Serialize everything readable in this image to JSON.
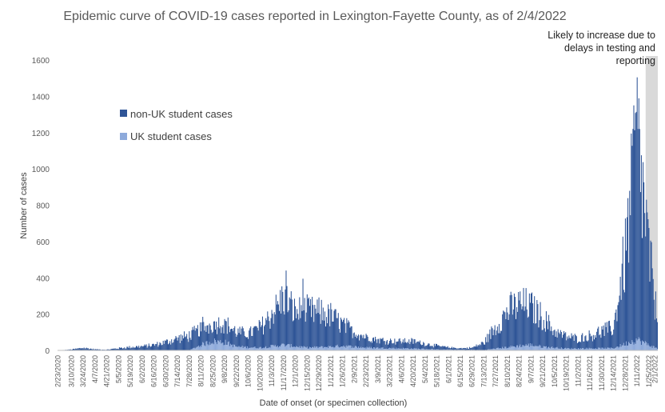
{
  "chart_data": {
    "type": "bar",
    "stacked": true,
    "title": "Epidemic curve of COVID-19 cases reported in Lexington-Fayette County, as of 2/4/2022",
    "xlabel": "Date of onset (or specimen collection)",
    "ylabel": "Number of cases",
    "ylim": [
      0,
      1600
    ],
    "yticks": [
      "0",
      "200",
      "400",
      "600",
      "800",
      "1000",
      "1200",
      "1400",
      "1600"
    ],
    "grid": false,
    "legend": {
      "position": "upper-left inside plot",
      "entries": [
        "non-UK student cases",
        "UK student cases"
      ]
    },
    "colors": {
      "non_uk": "#2f5597",
      "uk": "#8eaadb",
      "shade": "#d9d9d9"
    },
    "annotation": {
      "lines": [
        "Likely to increase due to",
        "delays in testing and",
        "reporting"
      ],
      "shaded_from": "1/22/2022",
      "shaded_to": "2/4/2022"
    },
    "x_start": "2/23/2020",
    "x_end": "2/4/2022",
    "x_tick_labels": [
      "2/23/2020",
      "3/10/2020",
      "3/24/2020",
      "4/7/2020",
      "4/21/2020",
      "5/5/2020",
      "5/19/2020",
      "6/2/2020",
      "6/16/2020",
      "6/30/2020",
      "7/14/2020",
      "7/28/2020",
      "8/11/2020",
      "8/25/2020",
      "9/8/2020",
      "9/22/2020",
      "10/6/2020",
      "10/20/2020",
      "11/3/2020",
      "11/17/2020",
      "12/1/2020",
      "12/15/2020",
      "12/29/2020",
      "1/12/2021",
      "1/26/2021",
      "2/9/2021",
      "2/23/2021",
      "3/9/2021",
      "3/23/2021",
      "4/6/2021",
      "4/20/2021",
      "5/4/2021",
      "5/18/2021",
      "6/1/2021",
      "6/15/2021",
      "6/29/2021",
      "7/13/2021",
      "7/27/2021",
      "8/10/2021",
      "8/24/2021",
      "9/7/2021",
      "9/21/2021",
      "10/5/2021",
      "10/19/2021",
      "11/2/2021",
      "11/16/2021",
      "11/30/2021",
      "12/14/2021",
      "12/28/2021",
      "1/11/2022",
      "1/25/2022",
      "2/1/2022"
    ],
    "series": [
      {
        "name": "non-UK student cases",
        "shape_keypoints": [
          [
            "2/23/2020",
            0
          ],
          [
            "3/10/2020",
            5
          ],
          [
            "3/24/2020",
            14
          ],
          [
            "4/7/2020",
            6
          ],
          [
            "4/21/2020",
            4
          ],
          [
            "5/5/2020",
            12
          ],
          [
            "5/19/2020",
            18
          ],
          [
            "6/2/2020",
            22
          ],
          [
            "6/16/2020",
            30
          ],
          [
            "6/30/2020",
            45
          ],
          [
            "7/14/2020",
            65
          ],
          [
            "7/28/2020",
            80
          ],
          [
            "8/11/2020",
            90
          ],
          [
            "8/25/2020",
            95
          ],
          [
            "9/8/2020",
            105
          ],
          [
            "9/22/2020",
            80
          ],
          [
            "10/6/2020",
            75
          ],
          [
            "10/20/2020",
            110
          ],
          [
            "11/3/2020",
            180
          ],
          [
            "11/17/2020",
            260
          ],
          [
            "12/1/2020",
            190
          ],
          [
            "12/15/2020",
            200
          ],
          [
            "12/29/2020",
            190
          ],
          [
            "1/12/2021",
            170
          ],
          [
            "1/26/2021",
            120
          ],
          [
            "2/9/2021",
            80
          ],
          [
            "2/23/2021",
            60
          ],
          [
            "3/9/2021",
            45
          ],
          [
            "3/23/2021",
            40
          ],
          [
            "4/6/2021",
            40
          ],
          [
            "4/20/2021",
            40
          ],
          [
            "5/4/2021",
            30
          ],
          [
            "5/18/2021",
            20
          ],
          [
            "6/1/2021",
            12
          ],
          [
            "6/15/2021",
            8
          ],
          [
            "6/29/2021",
            12
          ],
          [
            "7/13/2021",
            40
          ],
          [
            "7/27/2021",
            120
          ],
          [
            "8/10/2021",
            200
          ],
          [
            "8/24/2021",
            230
          ],
          [
            "9/7/2021",
            210
          ],
          [
            "9/21/2021",
            160
          ],
          [
            "10/5/2021",
            90
          ],
          [
            "10/19/2021",
            65
          ],
          [
            "11/2/2021",
            55
          ],
          [
            "11/16/2021",
            70
          ],
          [
            "11/30/2021",
            95
          ],
          [
            "12/14/2021",
            110
          ],
          [
            "12/28/2021",
            500
          ],
          [
            "1/11/2022",
            1100
          ],
          [
            "1/25/2022",
            500
          ],
          [
            "2/4/2022",
            150
          ]
        ]
      },
      {
        "name": "UK student cases",
        "shape_keypoints": [
          [
            "2/23/2020",
            0
          ],
          [
            "7/28/2020",
            0
          ],
          [
            "8/11/2020",
            30
          ],
          [
            "8/25/2020",
            50
          ],
          [
            "9/8/2020",
            45
          ],
          [
            "9/22/2020",
            20
          ],
          [
            "10/20/2020",
            15
          ],
          [
            "11/17/2020",
            30
          ],
          [
            "12/15/2020",
            15
          ],
          [
            "1/12/2021",
            20
          ],
          [
            "1/26/2021",
            25
          ],
          [
            "2/23/2021",
            15
          ],
          [
            "4/20/2021",
            10
          ],
          [
            "5/18/2021",
            5
          ],
          [
            "7/13/2021",
            2
          ],
          [
            "8/24/2021",
            25
          ],
          [
            "9/7/2021",
            30
          ],
          [
            "9/21/2021",
            20
          ],
          [
            "10/19/2021",
            10
          ],
          [
            "12/14/2021",
            12
          ],
          [
            "1/11/2022",
            60
          ],
          [
            "1/25/2022",
            30
          ],
          [
            "2/4/2022",
            10
          ]
        ]
      }
    ],
    "peak_annotations": [
      [
        "8/13/2020",
        185
      ],
      [
        "11/20/2020",
        440
      ],
      [
        "12/10/2020",
        395
      ],
      [
        "1/7/2022",
        1350
      ],
      [
        "1/12/2022",
        1220
      ]
    ]
  }
}
